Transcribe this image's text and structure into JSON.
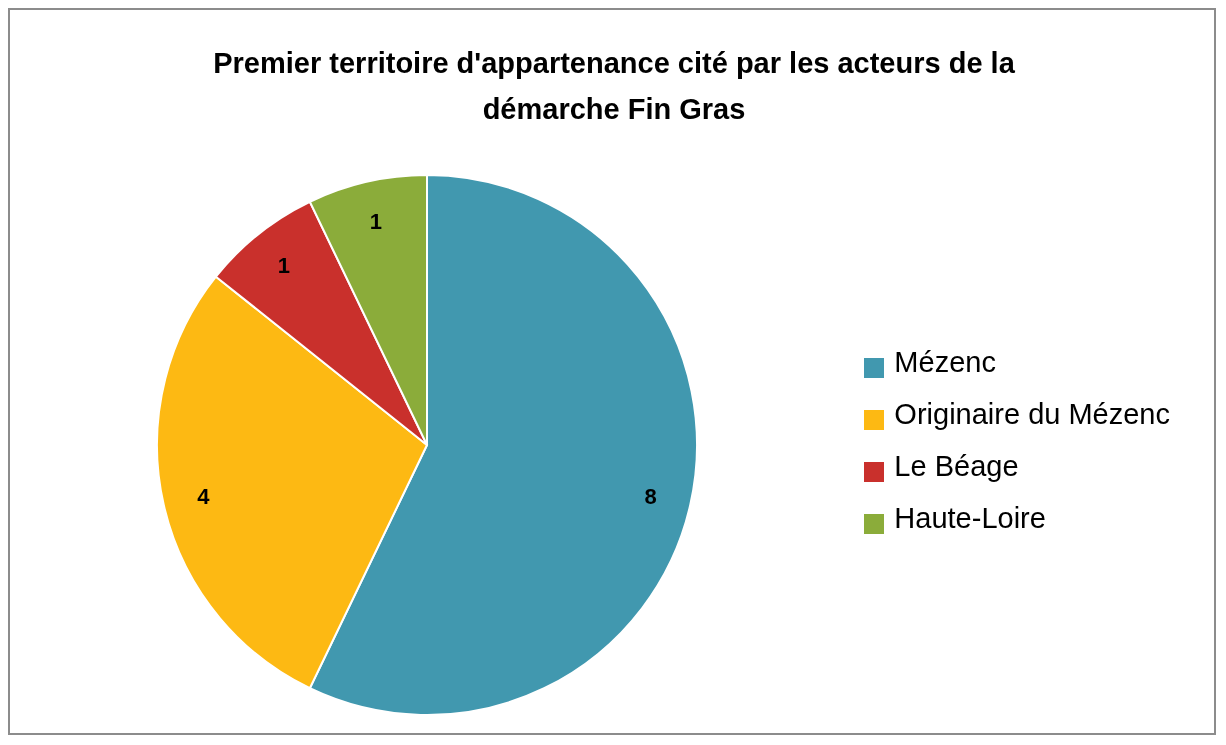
{
  "chart_data": {
    "type": "pie",
    "title": "Premier territoire d'appartenance cité par les acteurs de la démarche Fin Gras",
    "categories": [
      "Mézenc",
      "Originaire du Mézenc",
      "Le Béage",
      "Haute-Loire"
    ],
    "values": [
      8,
      4,
      1,
      1
    ],
    "colors": [
      "#4198af",
      "#fdb913",
      "#c9302c",
      "#8bac3a"
    ],
    "data_labels": true,
    "legend": "right"
  }
}
